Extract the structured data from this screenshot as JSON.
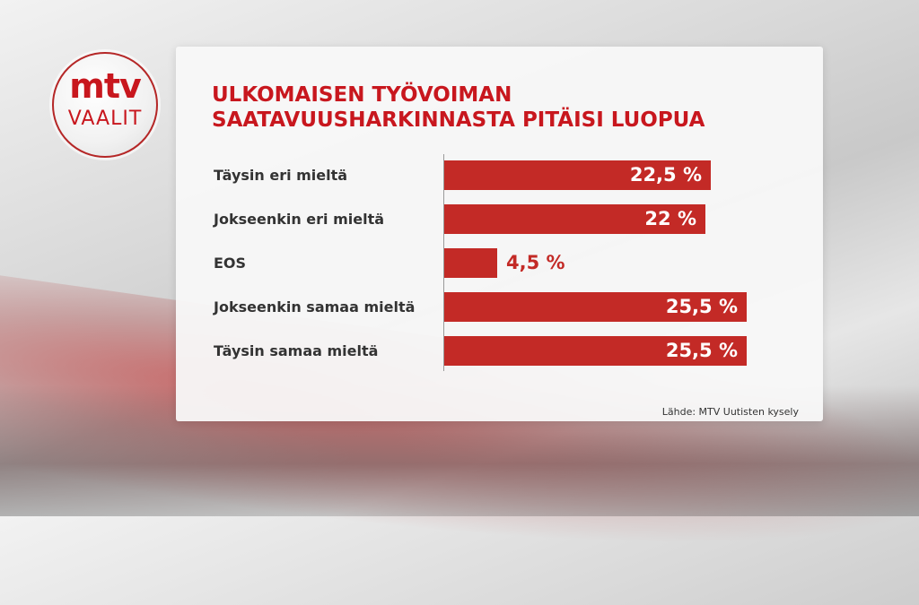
{
  "brand": {
    "logo_main": "mtv",
    "logo_sub": "VAALIT",
    "accent": "#c8171e",
    "bar_color": "#c32a26"
  },
  "chart_data": {
    "type": "bar",
    "orientation": "horizontal",
    "title_lines": [
      "ULKOMAISEN TYÖVOIMAN",
      "SAATAVUUSHARKINNASTA PITÄISI LUOPUA"
    ],
    "categories": [
      "Täysin eri mieltä",
      "Jokseenkin eri mieltä",
      "EOS",
      "Jokseenkin samaa mieltä",
      "Täysin samaa mieltä"
    ],
    "values": [
      22.5,
      22,
      4.5,
      25.5,
      25.5
    ],
    "value_labels": [
      "22,5 %",
      "22 %",
      "4,5 %",
      "25,5 %",
      "25,5 %"
    ],
    "unit": "%",
    "xlim": [
      0,
      25.5
    ]
  },
  "source": "Lähde: MTV Uutisten kysely"
}
